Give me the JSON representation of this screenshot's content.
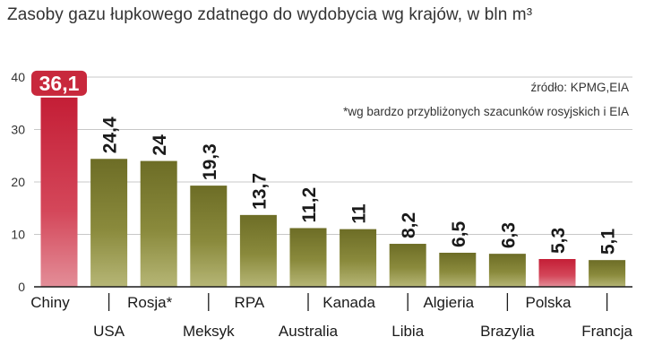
{
  "chart_data": {
    "type": "bar",
    "title": "Zasoby gazu łupkowego zdatnego do wydobycia wg krajów, w bln m³",
    "xlabel": "",
    "ylabel": "",
    "ylim": [
      0,
      40
    ],
    "y_ticks": [
      0,
      10,
      20,
      30,
      40
    ],
    "grid": true,
    "categories": [
      "Chiny",
      "USA",
      "Rosja*",
      "Meksyk",
      "RPA",
      "Australia",
      "Kanada",
      "Libia",
      "Algieria",
      "Brazylia",
      "Polska",
      "Francja"
    ],
    "values": [
      36.1,
      24.4,
      24,
      19.3,
      13.7,
      11.2,
      11,
      8.2,
      6.5,
      6.3,
      5.3,
      5.1
    ],
    "value_labels": [
      "36,1",
      "24,4",
      "24",
      "19,3",
      "13,7",
      "11,2",
      "11",
      "8,2",
      "6,5",
      "6,3",
      "5,3",
      "5,1"
    ],
    "highlighted": [
      "Chiny",
      "Polska"
    ],
    "annotations": [
      "źródło: KPMG,EIA",
      "*wg bardzo przybliżonych szacunków rosyjskich i EIA"
    ],
    "colors": {
      "bar": "#7a7a2e",
      "highlight": "#c8283c",
      "value_badge": "#c8283c",
      "grid": "#c8c8c8"
    }
  }
}
